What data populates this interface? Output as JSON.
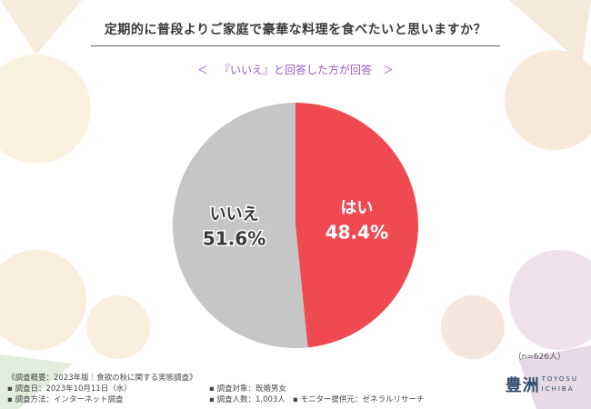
{
  "title": "定期的に普段よりご家庭で豪華な料理を食べたいと思いますか？",
  "subtitle": {
    "left_mark": "＜",
    "text": "『いいえ』と回答した方が回答",
    "right_mark": "＞"
  },
  "chart_data": {
    "type": "pie",
    "slices": [
      {
        "label": "はい",
        "value": 48.4,
        "value_label": "48.4%",
        "color": "#ef4a51"
      },
      {
        "label": "いいえ",
        "value": 51.6,
        "value_label": "51.6%",
        "color": "#c6c6c6"
      }
    ]
  },
  "n_note": "（n=626人）",
  "footer": {
    "survey": "《調査概要：2023年版｜食欲の秋に関する実態調査》",
    "date": "調査日：2023年10月11日（水）",
    "target": "調査対象：既婚男女",
    "method": "調査方法：インターネット調査",
    "count": "調査人数：1,003人",
    "provider": "モニター提供元：ゼネラルリサーチ"
  },
  "logo": {
    "kanji": "豊洲",
    "line1": "TOYOSU",
    "line2": "ICHIBA"
  }
}
